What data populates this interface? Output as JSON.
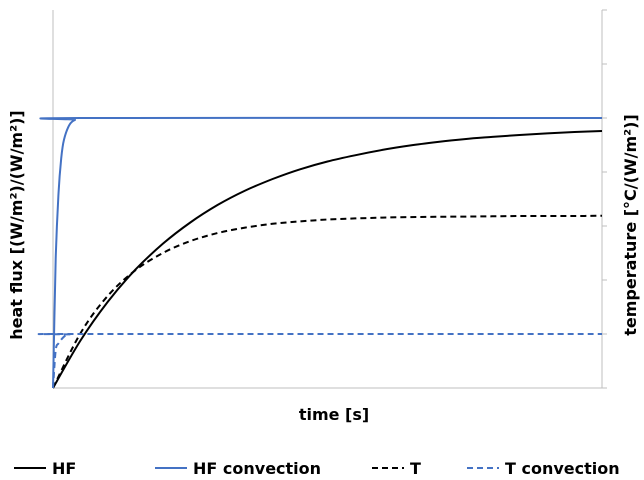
{
  "chart_data": {
    "type": "line",
    "xlabel": "time [s]",
    "ylabel_left": "heat flux [(W/m²)/(W/m²)]",
    "ylabel_right": "temperature [°C/(W/m²)]",
    "xlim": [
      0,
      1
    ],
    "ylim": [
      0,
      1
    ],
    "grid": false,
    "legend_position": "bottom",
    "tick_labels_visible": false,
    "series": [
      {
        "name": "HF",
        "axis": "left",
        "color": "#000000",
        "dash": "solid",
        "x": [
          0,
          0.05,
          0.1,
          0.15,
          0.2,
          0.25,
          0.3,
          0.35,
          0.4,
          0.45,
          0.5,
          0.55,
          0.6,
          0.65,
          0.7,
          0.75,
          0.8,
          0.85,
          0.9,
          0.95,
          1.0
        ],
        "y": [
          0,
          0.176,
          0.32,
          0.438,
          0.534,
          0.613,
          0.678,
          0.731,
          0.774,
          0.81,
          0.839,
          0.862,
          0.882,
          0.898,
          0.911,
          0.922,
          0.93,
          0.937,
          0.943,
          0.948,
          0.952
        ]
      },
      {
        "name": "HF convection",
        "axis": "left",
        "color": "#4472c4",
        "dash": "solid",
        "x": [
          0,
          0.005,
          0.01,
          0.015,
          0.02,
          0.03,
          0.04,
          0.05,
          1.0
        ],
        "y": [
          0,
          0.48,
          0.72,
          0.85,
          0.92,
          0.975,
          0.993,
          1.0,
          1.0
        ]
      },
      {
        "name": "T",
        "axis": "right",
        "color": "#000000",
        "dash": "dashed",
        "x": [
          0,
          0.05,
          0.1,
          0.15,
          0.2,
          0.25,
          0.3,
          0.35,
          0.4,
          0.45,
          0.5,
          0.55,
          0.6,
          0.65,
          0.7,
          0.75,
          0.8,
          0.85,
          0.9,
          0.95,
          1.0
        ],
        "y": [
          0,
          0.203,
          0.342,
          0.436,
          0.5,
          0.544,
          0.574,
          0.594,
          0.608,
          0.617,
          0.624,
          0.628,
          0.631,
          0.633,
          0.634,
          0.635,
          0.636,
          0.637,
          0.637,
          0.637,
          0.638
        ]
      },
      {
        "name": "T convection",
        "axis": "right",
        "color": "#4472c4",
        "dash": "dashed",
        "x": [
          0,
          0.005,
          0.01,
          0.02,
          0.03,
          0.05,
          1.0
        ],
        "y": [
          0,
          0.14,
          0.165,
          0.19,
          0.198,
          0.2,
          0.2
        ]
      }
    ]
  }
}
